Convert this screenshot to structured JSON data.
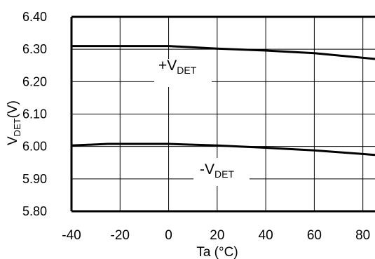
{
  "chart_data": {
    "type": "line",
    "xlabel": "Ta (°C)",
    "ylabel": {
      "main": "V",
      "sub": "DET",
      "unit": "(V)"
    },
    "xlim": [
      -40,
      85
    ],
    "ylim": [
      5.8,
      6.4
    ],
    "x_ticks": [
      -40,
      -20,
      0,
      20,
      40,
      60,
      80
    ],
    "y_ticks": [
      5.8,
      5.9,
      6.0,
      6.1,
      6.2,
      6.3,
      6.4
    ],
    "x_tick_labels": [
      "-40",
      "-20",
      "0",
      "20",
      "40",
      "60",
      "80"
    ],
    "y_tick_labels": [
      "5.80",
      "5.90",
      "6.00",
      "6.10",
      "6.20",
      "6.30",
      "6.40"
    ],
    "grid": true,
    "series": [
      {
        "name": "+VDET",
        "label_main": "+V",
        "label_sub": "DET",
        "x": [
          -40,
          -20,
          0,
          20,
          40,
          60,
          85
        ],
        "y": [
          6.31,
          6.31,
          6.31,
          6.302,
          6.296,
          6.288,
          6.27
        ]
      },
      {
        "name": "-VDET",
        "label_main": "-V",
        "label_sub": "DET",
        "x": [
          -40,
          -25,
          0,
          20,
          40,
          60,
          85
        ],
        "y": [
          6.003,
          6.008,
          6.008,
          6.003,
          5.996,
          5.988,
          5.974
        ]
      }
    ],
    "colors": {
      "line": "#000000",
      "grid": "#000000",
      "background": "#ffffff"
    }
  }
}
